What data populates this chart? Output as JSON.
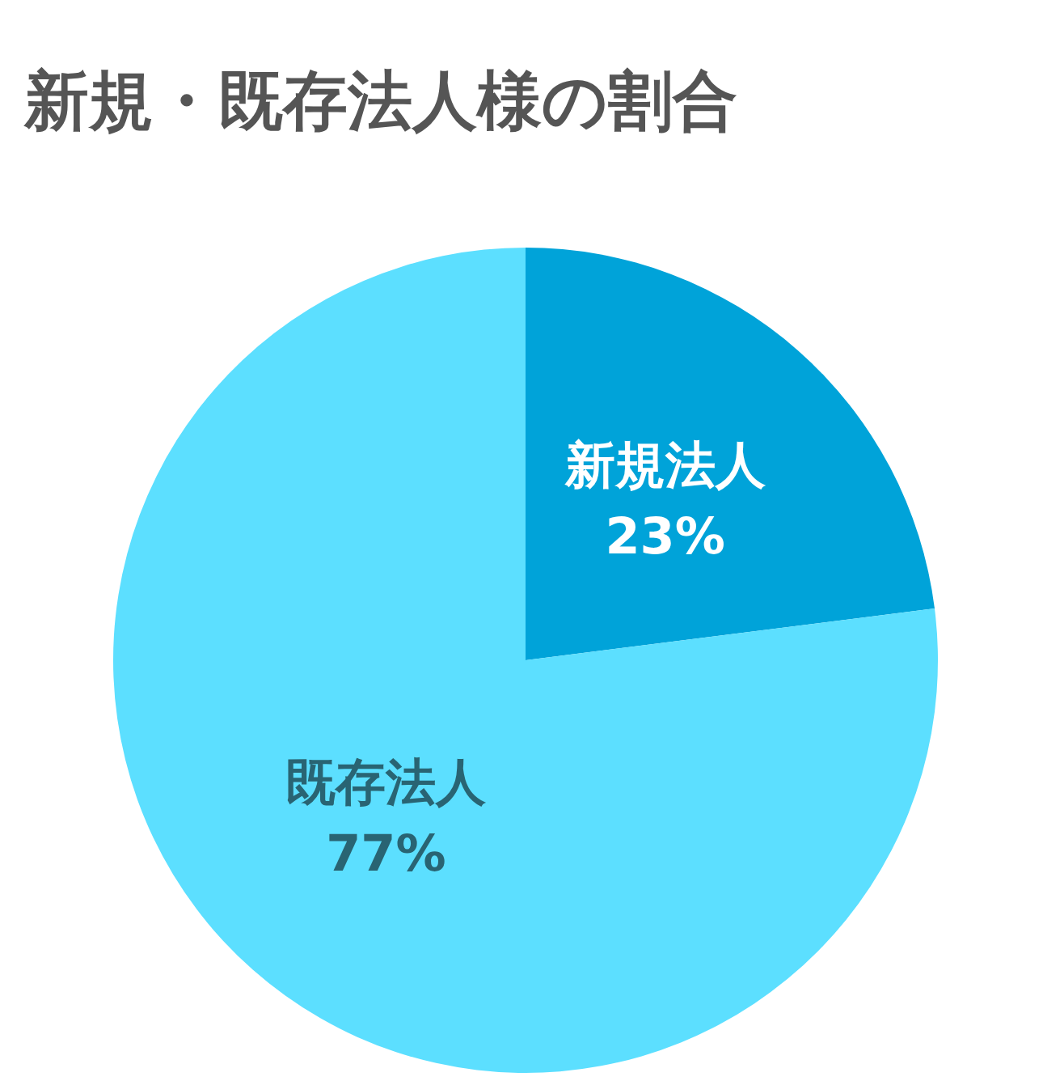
{
  "chart_data": {
    "type": "pie",
    "title": "新規・既存法人様の割合",
    "categories": [
      "新規法人",
      "既存法人"
    ],
    "values": [
      23,
      77
    ],
    "colors": [
      "#00a3d9",
      "#5cdfff"
    ],
    "value_labels": [
      "23%",
      "77%"
    ],
    "legend": false
  }
}
